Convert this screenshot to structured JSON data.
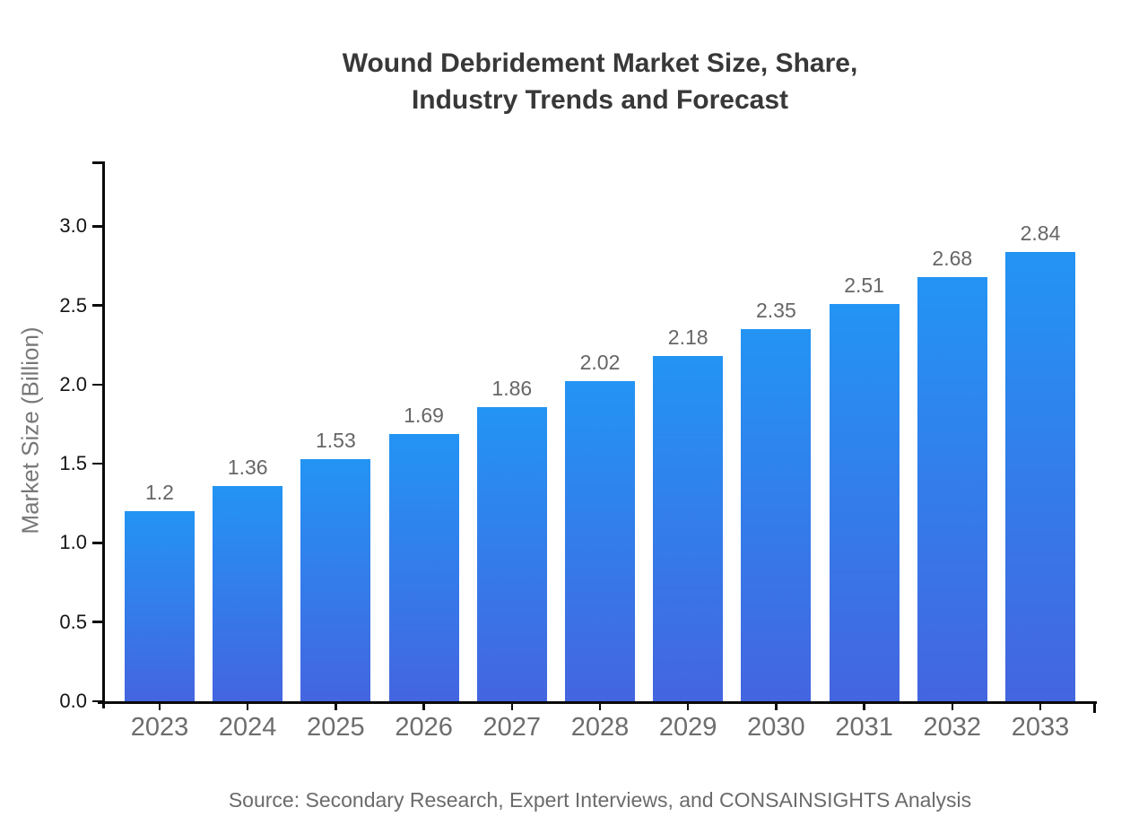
{
  "chart_data": {
    "type": "bar",
    "title_lines": [
      "Wound Debridement Market Size, Share,",
      "Industry Trends and Forecast"
    ],
    "ylabel": "Market Size (Billion)",
    "categories": [
      "2023",
      "2024",
      "2025",
      "2026",
      "2027",
      "2028",
      "2029",
      "2030",
      "2031",
      "2032",
      "2033"
    ],
    "values": [
      1.2,
      1.36,
      1.53,
      1.69,
      1.86,
      2.02,
      2.18,
      2.35,
      2.51,
      2.68,
      2.84
    ],
    "value_labels": [
      "1.2",
      "1.36",
      "1.53",
      "1.69",
      "1.86",
      "2.02",
      "2.18",
      "2.35",
      "2.51",
      "2.68",
      "2.84"
    ],
    "yticks": [
      0,
      0.5,
      1,
      1.5,
      2,
      2.5,
      3
    ],
    "ytick_labels": [
      "0.0",
      "0.5",
      "1.0",
      "1.5",
      "2.0",
      "2.5",
      "3.0"
    ],
    "ylim": [
      0,
      3.41
    ],
    "grid": false,
    "legend_position": "none",
    "bar_color_top": "#2394f4",
    "bar_color_bottom": "#4465e0",
    "axis_color": "#0a0a0a",
    "source": "Source: Secondary Research, Expert Interviews, and CONSAINSIGHTS Analysis"
  }
}
